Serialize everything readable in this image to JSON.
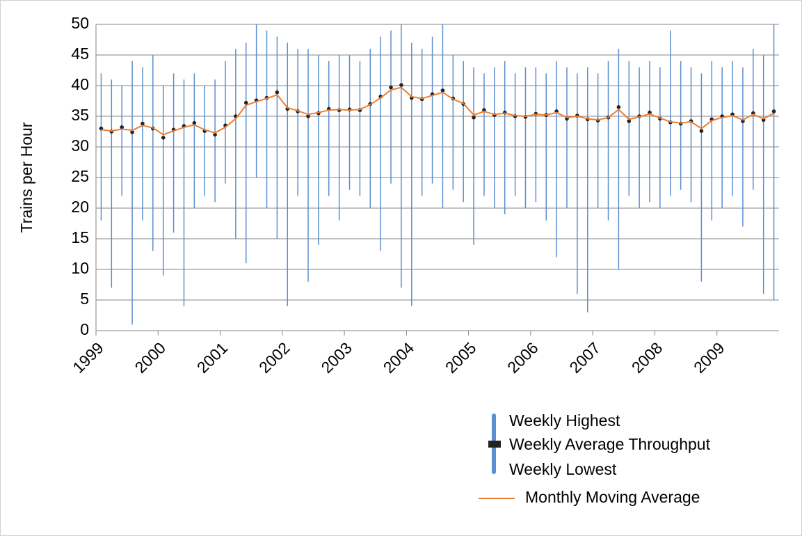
{
  "chart_data": {
    "type": "high-low",
    "y_label": "Trains per Hour",
    "categories": [
      "1999",
      null,
      null,
      null,
      null,
      null,
      "2000",
      null,
      null,
      null,
      null,
      null,
      "2001",
      null,
      null,
      null,
      null,
      null,
      "2002",
      null,
      null,
      null,
      null,
      null,
      "2003",
      null,
      null,
      null,
      null,
      null,
      "2004",
      null,
      null,
      null,
      null,
      null,
      "2005",
      null,
      null,
      null,
      null,
      null,
      "2006",
      null,
      null,
      null,
      null,
      null,
      "2007",
      null,
      null,
      null,
      null,
      null,
      "2008",
      null,
      null,
      null,
      null,
      null,
      "2009",
      null,
      null,
      null,
      null,
      null
    ],
    "series": [
      {
        "name": "Weekly Highest",
        "color": "#5b8fd0",
        "values": [
          42,
          41,
          40,
          44,
          43,
          45,
          40,
          42,
          41,
          42,
          40,
          41,
          44,
          46,
          47,
          50,
          49,
          48,
          47,
          46,
          46,
          45,
          44,
          45,
          45,
          44,
          46,
          48,
          49,
          50,
          47,
          46,
          48,
          50,
          45,
          44,
          43,
          42,
          43,
          44,
          42,
          43,
          43,
          42,
          44,
          43,
          42,
          43,
          42,
          44,
          46,
          44,
          43,
          44,
          43,
          49,
          44,
          43,
          42,
          44,
          43,
          44,
          43,
          46,
          45,
          50
        ]
      },
      {
        "name": "Weekly Average Throughput",
        "color": "#222222",
        "values": [
          33,
          32.5,
          33.2,
          32.4,
          33.8,
          33.0,
          31.5,
          32.8,
          33.4,
          33.9,
          32.6,
          32.0,
          33.5,
          35.0,
          37.2,
          37.6,
          38.0,
          38.9,
          36.2,
          35.8,
          35.0,
          35.5,
          36.2,
          36.0,
          36.1,
          36.0,
          37.0,
          38.2,
          39.7,
          40.1,
          38.0,
          37.8,
          38.6,
          39.2,
          37.9,
          37.0,
          34.8,
          36.0,
          35.2,
          35.6,
          35.0,
          34.9,
          35.4,
          35.2,
          35.8,
          34.6,
          35.1,
          34.5,
          34.3,
          34.8,
          36.5,
          34.2,
          35.0,
          35.6,
          34.6,
          34.0,
          33.8,
          34.2,
          32.6,
          34.5,
          35.0,
          35.3,
          34.2,
          35.5,
          34.4,
          35.8
        ]
      },
      {
        "name": "Weekly Lowest",
        "color": "#5b8fd0",
        "values": [
          18,
          7,
          22,
          1,
          18,
          13,
          9,
          16,
          4,
          20,
          22,
          21,
          24,
          15,
          11,
          25,
          20,
          15,
          4,
          22,
          8,
          14,
          22,
          18,
          23,
          22,
          20,
          13,
          24,
          7,
          4,
          22,
          24,
          20,
          23,
          21,
          14,
          22,
          20,
          19,
          22,
          20,
          21,
          18,
          12,
          20,
          6,
          3,
          20,
          18,
          10,
          22,
          20,
          21,
          20,
          22,
          23,
          21,
          8,
          18,
          20,
          22,
          17,
          23,
          6,
          5
        ]
      },
      {
        "name": "Monthly Moving Average",
        "color": "#ed7d31",
        "values": [
          32.8,
          32.6,
          32.9,
          32.7,
          33.5,
          33.1,
          32.0,
          32.6,
          33.2,
          33.6,
          32.8,
          32.3,
          33.2,
          34.6,
          36.8,
          37.4,
          37.9,
          38.5,
          36.4,
          35.9,
          35.3,
          35.6,
          36.0,
          36.1,
          36.0,
          36.1,
          36.9,
          38.0,
          39.3,
          39.7,
          38.2,
          37.9,
          38.4,
          38.9,
          37.8,
          37.1,
          35.2,
          35.8,
          35.3,
          35.5,
          35.1,
          35.0,
          35.3,
          35.2,
          35.6,
          34.8,
          35.0,
          34.6,
          34.4,
          34.8,
          36.1,
          34.5,
          34.9,
          35.4,
          34.7,
          34.1,
          33.9,
          34.1,
          33.0,
          34.3,
          34.8,
          35.1,
          34.4,
          35.3,
          34.6,
          35.5
        ]
      }
    ],
    "ylim": [
      0,
      50
    ],
    "yticks": [
      0,
      5,
      10,
      15,
      20,
      25,
      30,
      35,
      40,
      45,
      50
    ],
    "grid": true
  }
}
